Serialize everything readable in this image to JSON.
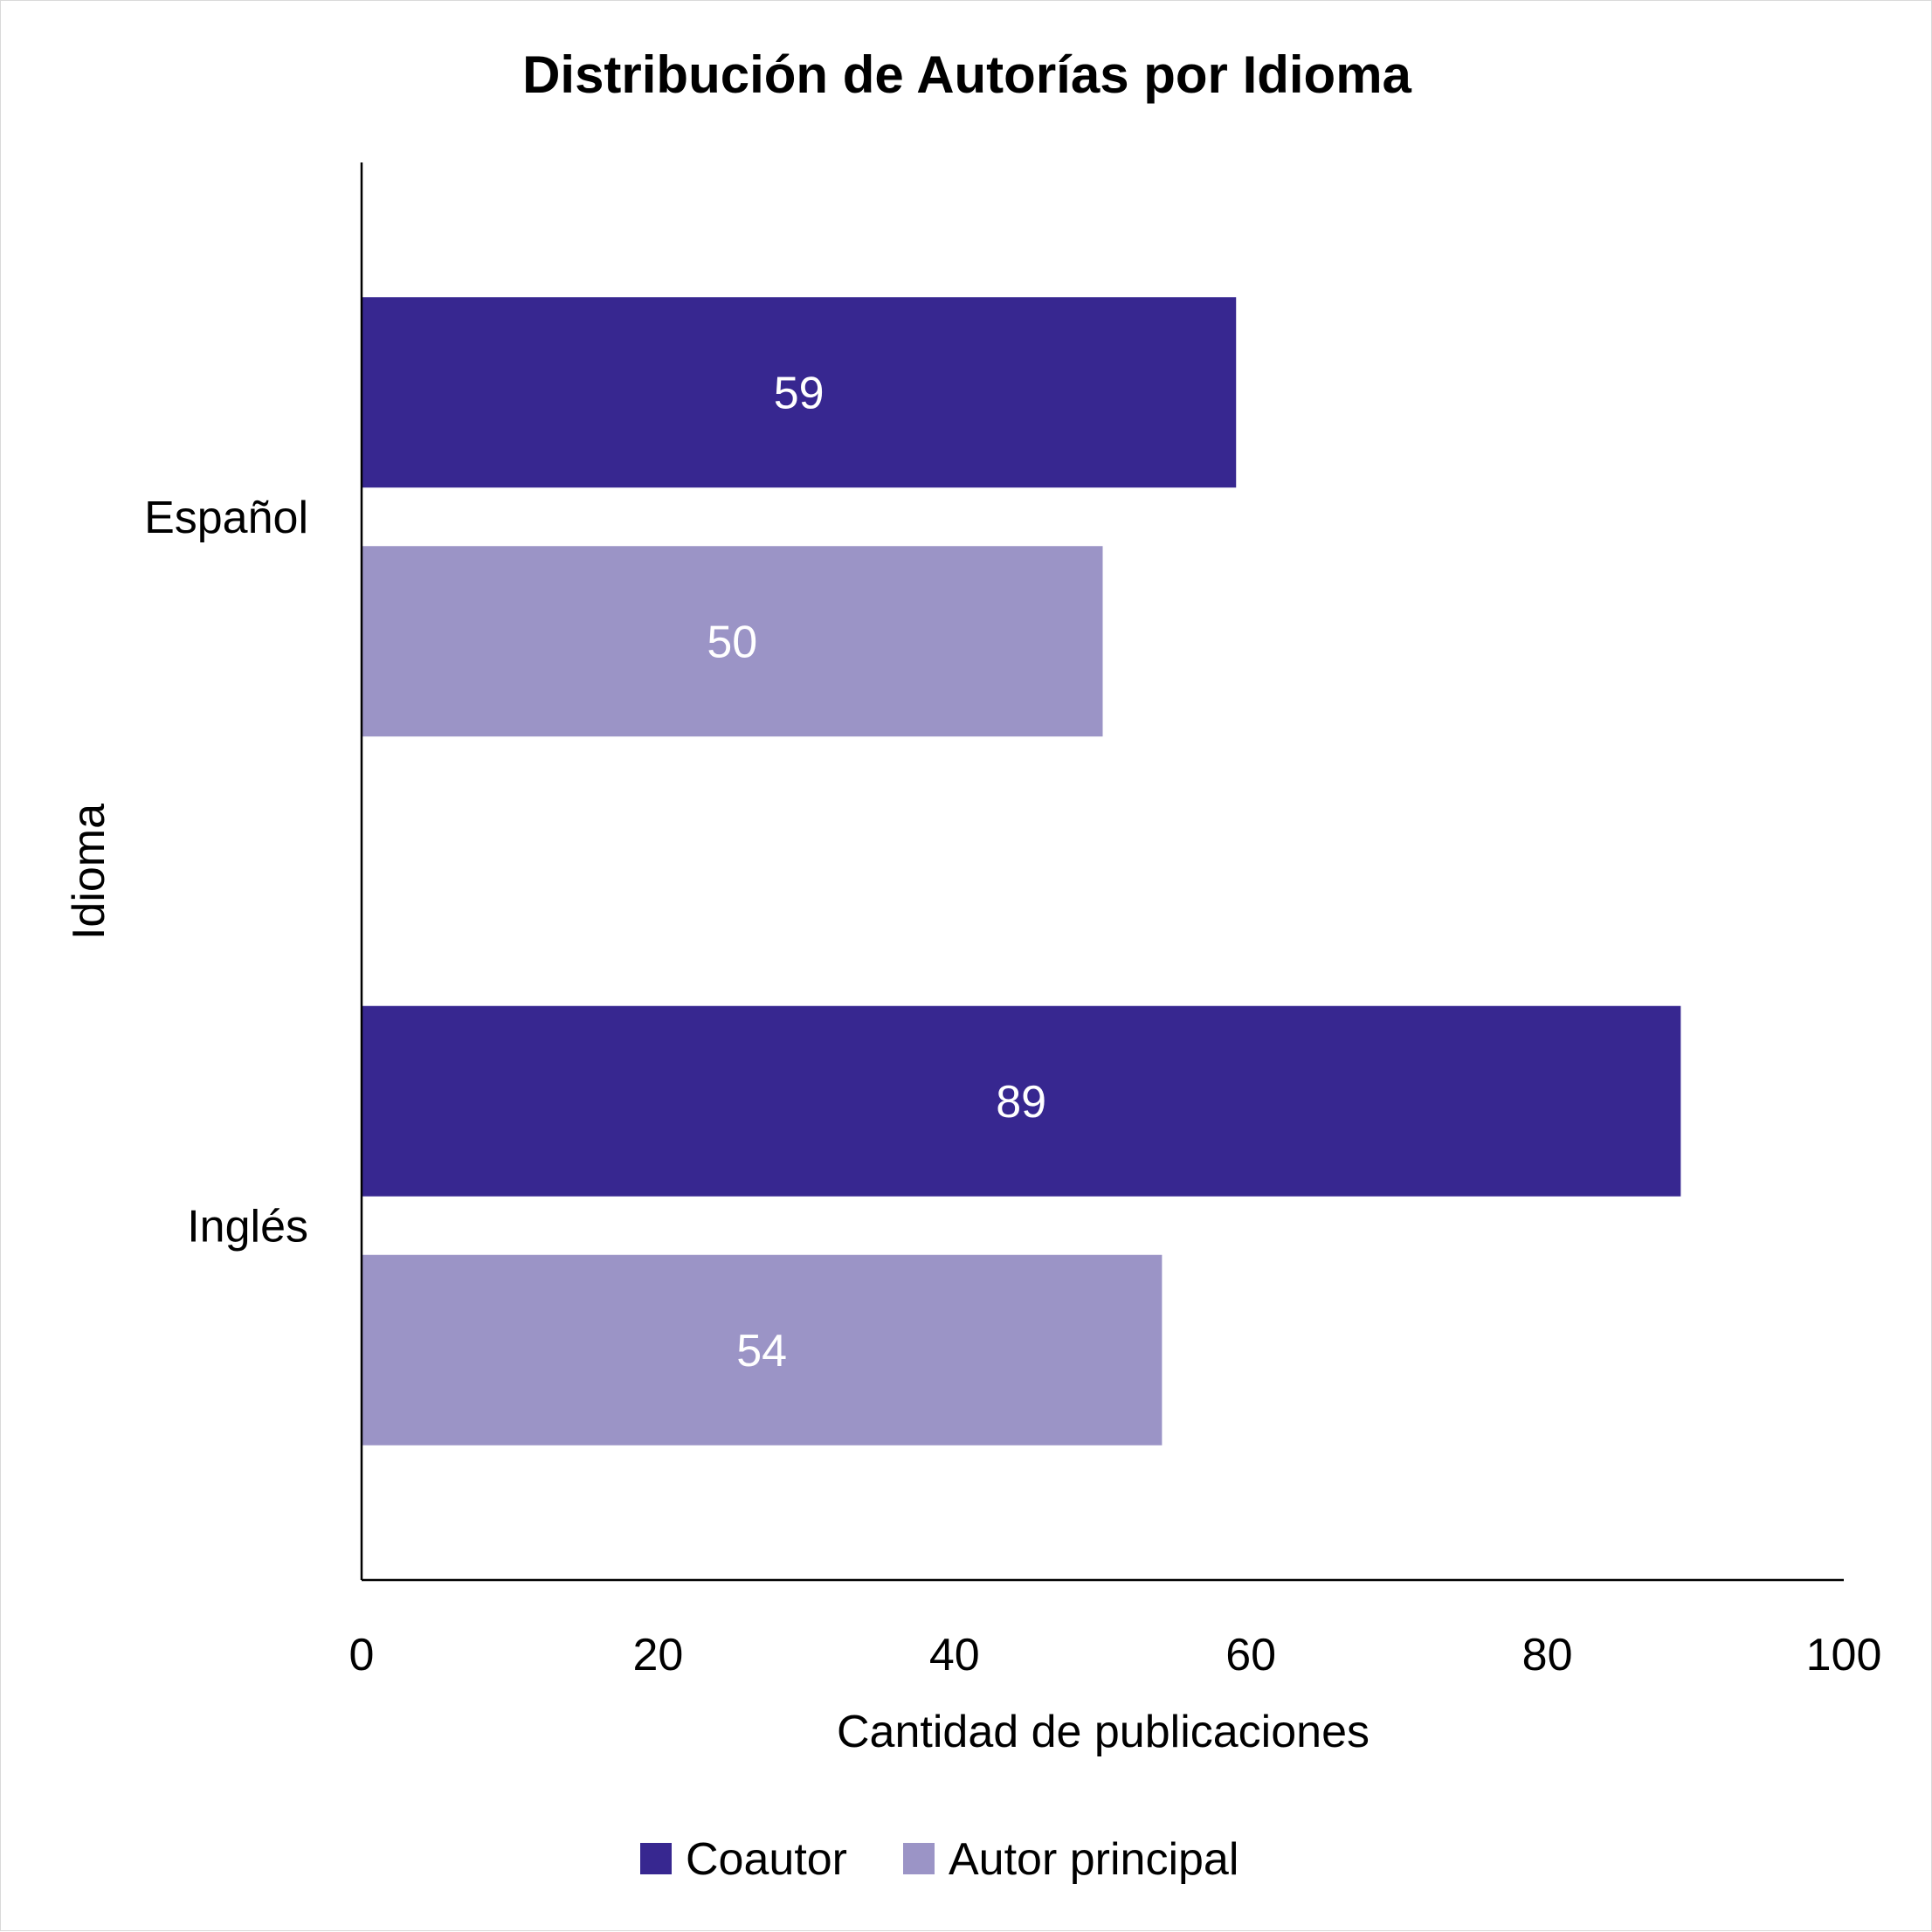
{
  "chart_data": {
    "type": "bar",
    "orientation": "horizontal",
    "title": "Distribución de Autorías por Idioma",
    "xlabel": "Cantidad de publicaciones",
    "ylabel": "Idioma",
    "xlim": [
      0,
      100
    ],
    "xticks": [
      "0",
      "20",
      "40",
      "60",
      "80",
      "100"
    ],
    "categories": [
      "Español",
      "Inglés"
    ],
    "series": [
      {
        "name": "Coautor",
        "values": [
          59,
          89
        ],
        "color": "#372790"
      },
      {
        "name": "Autor principal",
        "values": [
          50,
          54
        ],
        "color": "#9b94c6"
      }
    ],
    "grid": false,
    "legend_position": "bottom"
  }
}
